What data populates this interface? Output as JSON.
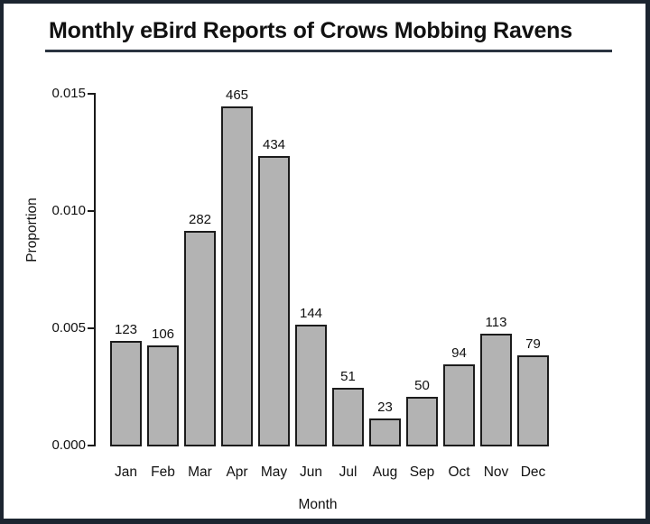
{
  "figure": {
    "title": "Monthly eBird Reports of Crows Mobbing Ravens"
  },
  "colors": {
    "background": "#ffffff",
    "frame": "#1c2530",
    "title_underline": "#2a3440",
    "bar_fill": "#b3b3b3",
    "bar_border": "#1c1c1c",
    "axis": "#1a1a1a",
    "text": "#111111"
  },
  "chart_data": {
    "type": "bar",
    "title": "Monthly eBird Reports of Crows Mobbing Ravens",
    "xlabel": "Month",
    "ylabel": "Proportion",
    "categories": [
      "Jan",
      "Feb",
      "Mar",
      "Apr",
      "May",
      "Jun",
      "Jul",
      "Aug",
      "Sep",
      "Oct",
      "Nov",
      "Dec"
    ],
    "values": [
      0.0045,
      0.0043,
      0.0092,
      0.0145,
      0.0124,
      0.0052,
      0.0025,
      0.0012,
      0.0021,
      0.0035,
      0.0048,
      0.0039
    ],
    "bar_labels": [
      "123",
      "106",
      "282",
      "465",
      "434",
      "144",
      "51",
      "23",
      "50",
      "94",
      "113",
      "79"
    ],
    "ylim": [
      0,
      0.015
    ],
    "yticks": [
      "0.000",
      "0.005",
      "0.010",
      "0.015"
    ],
    "ytick_values": [
      0,
      0.005,
      0.01,
      0.015
    ],
    "grid": false,
    "legend": "none"
  }
}
